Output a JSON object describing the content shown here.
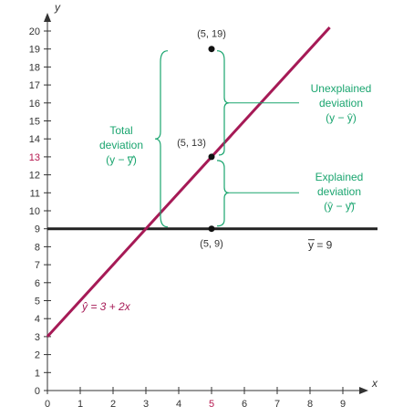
{
  "chart_data": {
    "type": "line",
    "xlabel": "x",
    "ylabel": "y",
    "xlim": [
      0,
      9
    ],
    "ylim": [
      0,
      20
    ],
    "x_ticks": [
      "0",
      "1",
      "2",
      "3",
      "4",
      "5",
      "6",
      "7",
      "8",
      "9"
    ],
    "y_ticks": [
      "0",
      "1",
      "2",
      "3",
      "4",
      "5",
      "6",
      "7",
      "8",
      "9",
      "10",
      "11",
      "12",
      "13",
      "14",
      "15",
      "16",
      "17",
      "18",
      "19",
      "20"
    ],
    "highlight_x": "5",
    "highlight_y": "13",
    "regression_line": {
      "intercept": 3,
      "slope": 2,
      "label": "ŷ = 3 + 2x",
      "x_range": [
        0,
        8.6
      ]
    },
    "mean_line": {
      "y": 9,
      "label": "y = 9"
    },
    "points": [
      {
        "x": 5,
        "y": 19,
        "label": "(5, 19)"
      },
      {
        "x": 5,
        "y": 13,
        "label": "(5, 13)"
      },
      {
        "x": 5,
        "y": 9,
        "label": "(5, 9)"
      }
    ],
    "annotations": {
      "total": [
        "Total",
        "deviation",
        "(y − y)"
      ],
      "unexplained": [
        "Unexplained",
        "deviation",
        "(y − ŷ)"
      ],
      "explained": [
        "Explained",
        "deviation",
        "(ŷ − y)"
      ]
    },
    "colors": {
      "regression": "#a61a56",
      "annotation": "#1aa56f",
      "axis": "#333333",
      "mean_line": "#222222",
      "highlight": "#b5174e"
    }
  }
}
